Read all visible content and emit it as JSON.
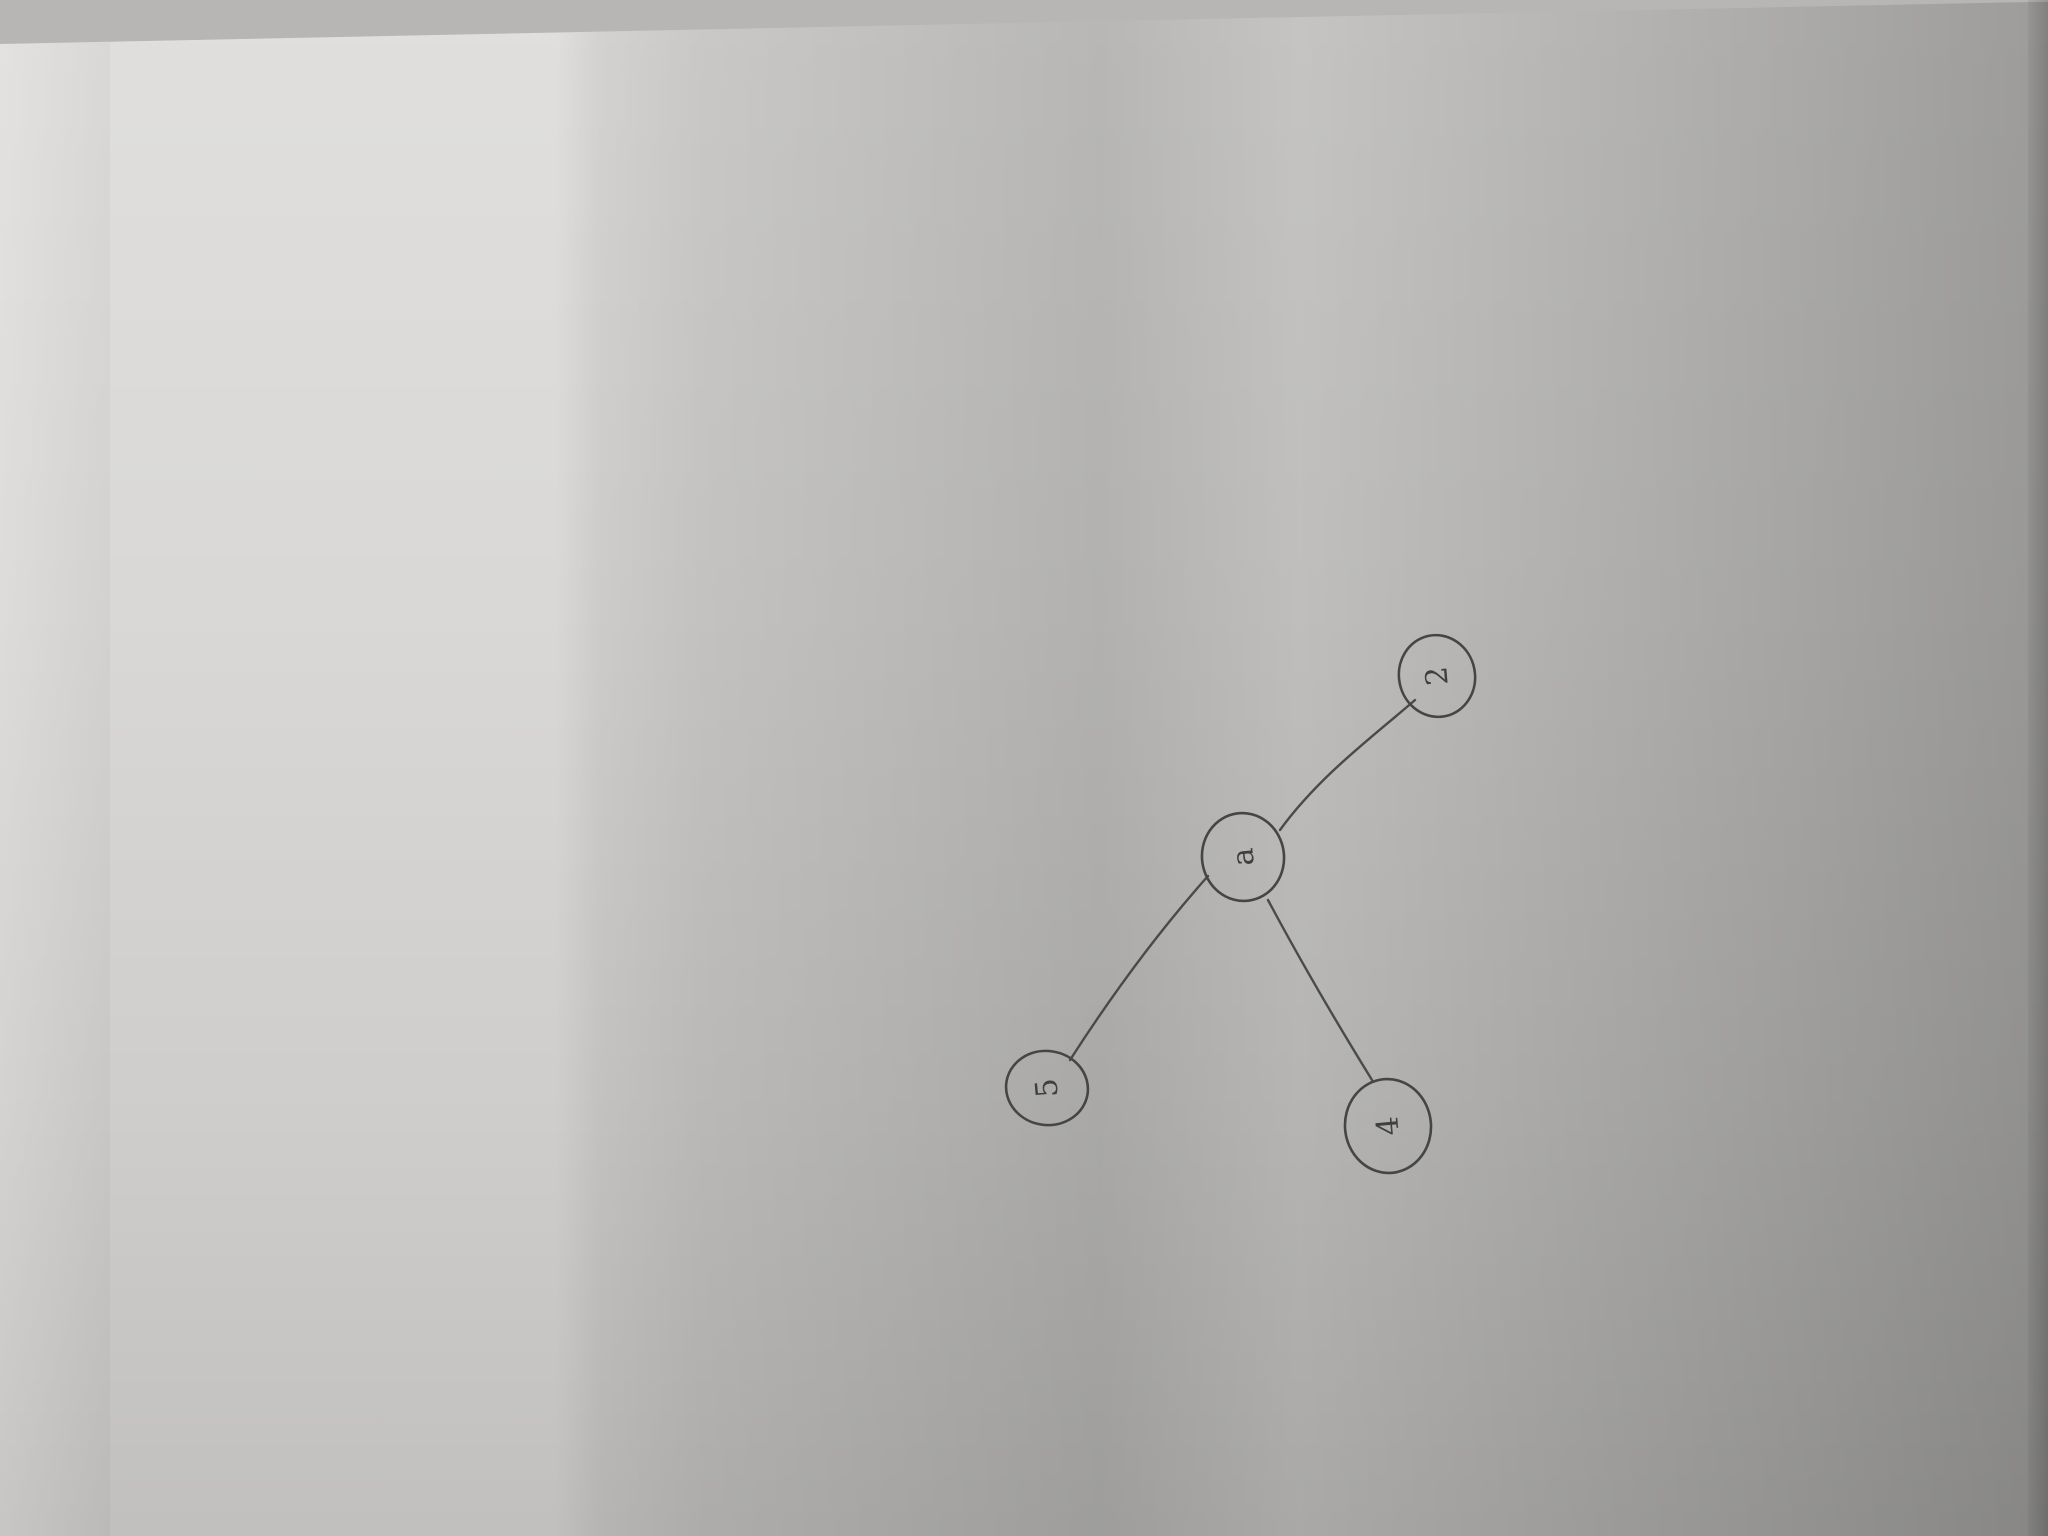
{
  "diagram": {
    "type": "tree",
    "nodes": [
      {
        "id": "top",
        "label": "2"
      },
      {
        "id": "center",
        "label": "a"
      },
      {
        "id": "bottom-left",
        "label": "5"
      },
      {
        "id": "bottom-right",
        "label": "4"
      }
    ],
    "edges": [
      {
        "from": "top",
        "to": "center"
      },
      {
        "from": "center",
        "to": "bottom-left"
      },
      {
        "from": "center",
        "to": "bottom-right"
      }
    ]
  }
}
